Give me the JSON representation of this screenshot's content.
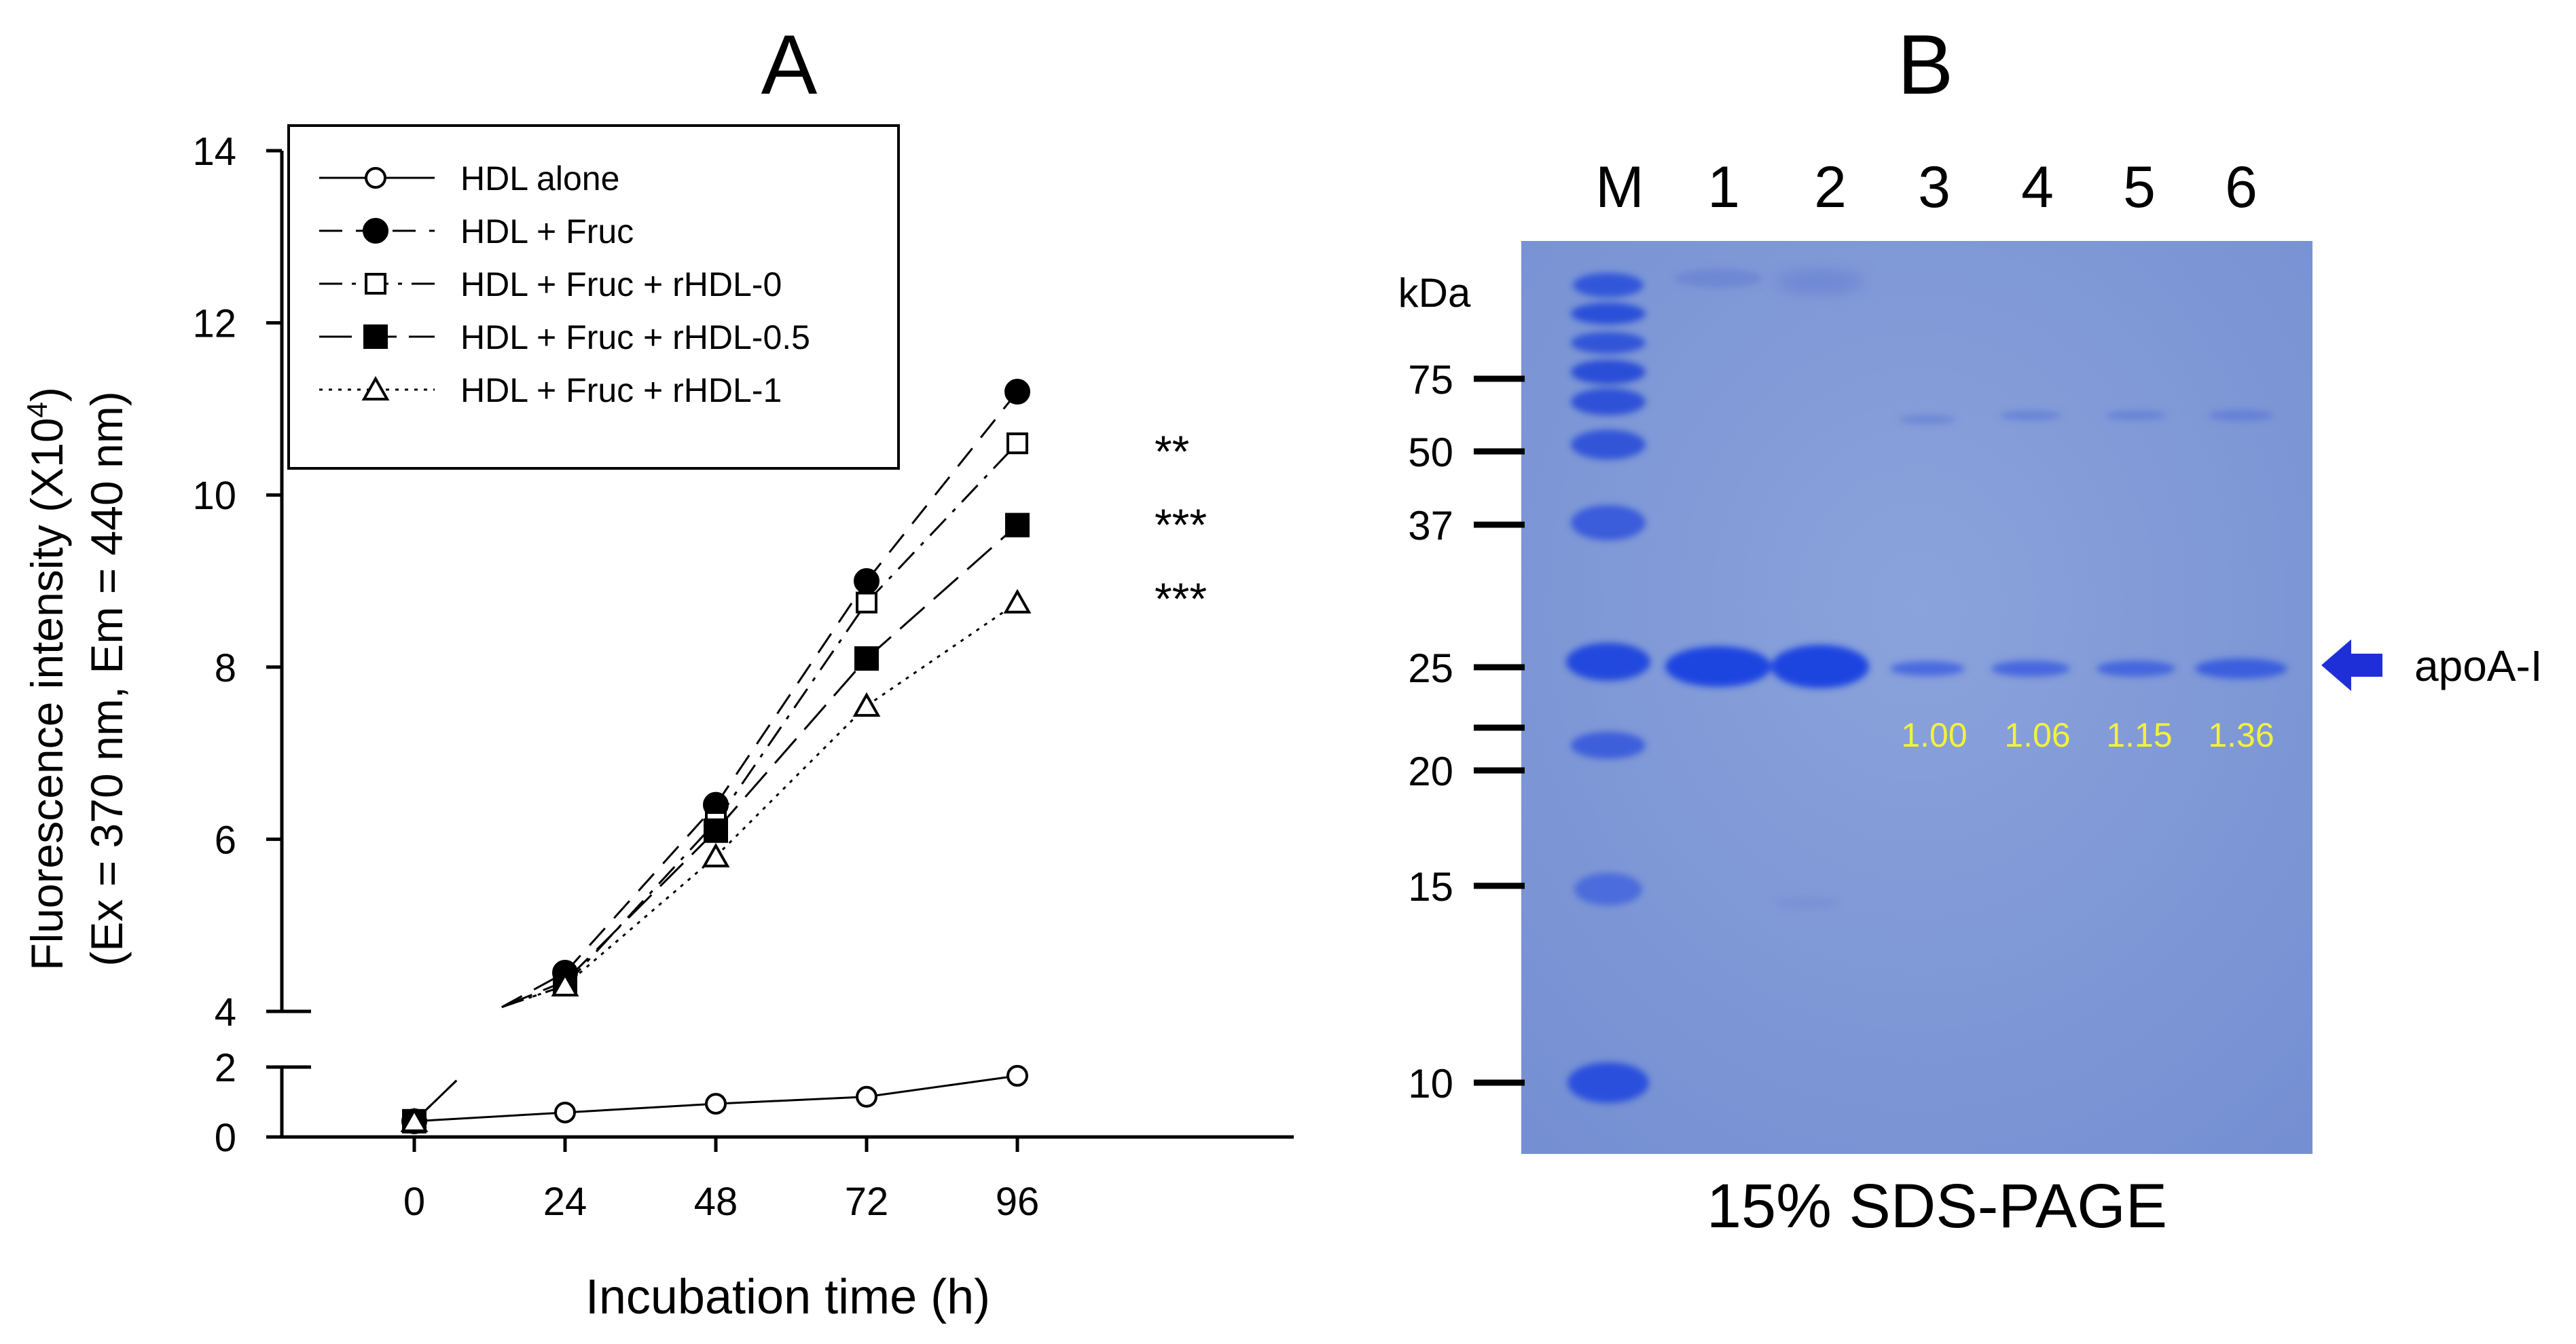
{
  "panel_a": {
    "label": "A",
    "ylabel_line1": "Fluorescence intensity (X10",
    "ylabel_sup": "4",
    "ylabel_line1_end": ")",
    "ylabel_line2": "(Ex = 370 nm, Em = 440 nm)",
    "xlabel": "Incubation time (h)",
    "significance": [
      "**",
      "***",
      "***"
    ]
  },
  "panel_b": {
    "label": "B",
    "lanes": [
      "M",
      "1",
      "2",
      "3",
      "4",
      "5",
      "6"
    ],
    "kda_label": "kDa",
    "markers": [
      "75",
      "50",
      "37",
      "25",
      "20",
      "15",
      "10"
    ],
    "band_values": [
      "1.00",
      "1.06",
      "1.15",
      "1.36"
    ],
    "arrow_label": "apoA-I",
    "caption": "15% SDS-PAGE",
    "gel_color": "#7e98d6",
    "arrow_color": "#1e2fd8",
    "value_color": "#f2f23a"
  },
  "chart_data": {
    "type": "line",
    "x": [
      0,
      24,
      48,
      72,
      96
    ],
    "xticks": [
      "0",
      "24",
      "48",
      "72",
      "96"
    ],
    "yticks": [
      "0",
      "2",
      "4",
      "6",
      "8",
      "10",
      "12",
      "14"
    ],
    "xlabel": "Incubation time (h)",
    "ylabel": "Fluorescence intensity (X10^4) (Ex = 370 nm, Em = 440 nm)",
    "ylim": [
      0,
      14
    ],
    "y_axis_break": [
      2,
      4
    ],
    "legend_position": "top-left",
    "series": [
      {
        "name": "HDL alone",
        "marker": "open-circle",
        "dash": "solid",
        "values": [
          0.45,
          0.7,
          0.95,
          1.15,
          1.75
        ]
      },
      {
        "name": "HDL + Fruc",
        "marker": "filled-circle",
        "dash": "dashed",
        "values": [
          0.45,
          4.45,
          6.4,
          9.0,
          11.2
        ]
      },
      {
        "name": "HDL + Fruc + rHDL-0",
        "marker": "open-square",
        "dash": "dash-dot",
        "values": [
          0.45,
          4.3,
          6.2,
          8.75,
          10.6
        ]
      },
      {
        "name": "HDL + Fruc + rHDL-0.5",
        "marker": "filled-square",
        "dash": "long-dash",
        "values": [
          0.45,
          4.35,
          6.1,
          8.1,
          9.65
        ]
      },
      {
        "name": "HDL + Fruc + rHDL-1",
        "marker": "open-triangle",
        "dash": "dotted",
        "values": [
          0.45,
          4.3,
          5.8,
          7.55,
          8.75
        ]
      }
    ]
  }
}
